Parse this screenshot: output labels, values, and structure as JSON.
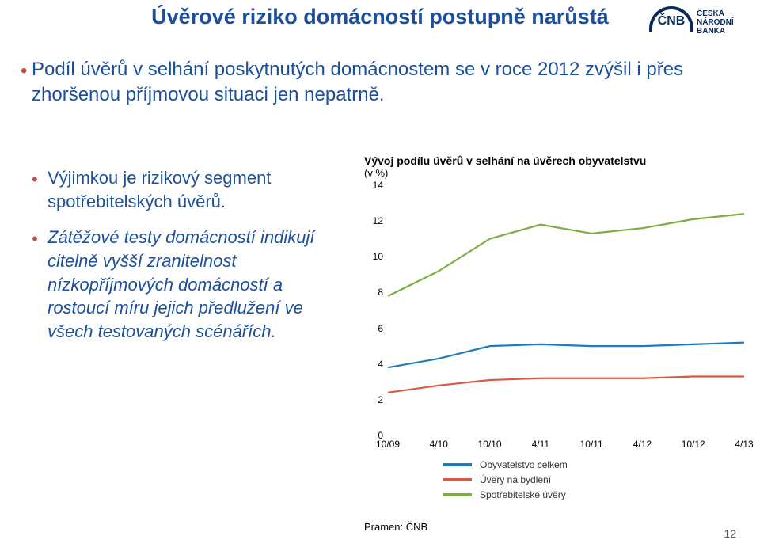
{
  "title": "Úvěrové riziko domácností postupně narůstá",
  "logo": {
    "abbr": "ČNB",
    "line1": "ČESKÁ",
    "line2": "NÁRODNÍ BANKA"
  },
  "bullet_color": "#c0504d",
  "text_color": "#1b4f9c",
  "main_bullet": "Podíl úvěrů v selhání poskytnutých domácnostem se v roce 2012 zvýšil i přes zhoršenou příjmovou situaci jen nepatrně.",
  "side_bullets": [
    {
      "text": "Výjimkou je rizikový segment spotřebitelských úvěrů.",
      "italic": false
    },
    {
      "text": "Zátěžové testy domácností indikují citelně vyšší zranitelnost nízkopříjmových domácností a rostoucí míru jejich předlužení ve všech testovaných scénářích.",
      "italic": true
    }
  ],
  "chart": {
    "title": "Vývoj podílu úvěrů v selhání na úvěrech obyvatelstvu",
    "unit": "(v %)",
    "type": "line",
    "background_color": "#ffffff",
    "title_fontsize": 14,
    "label_fontsize": 12,
    "line_width": 2.2,
    "ylim": [
      0,
      14
    ],
    "ytick_step": 2,
    "yticks": [
      0,
      2,
      4,
      6,
      8,
      10,
      12,
      14
    ],
    "x_categories": [
      "10/09",
      "4/10",
      "10/10",
      "4/11",
      "10/11",
      "4/12",
      "10/12",
      "4/13"
    ],
    "series": [
      {
        "name": "Obyvatelstvo celkem",
        "color": "#1f7bbf",
        "values": [
          3.8,
          4.3,
          5.0,
          5.1,
          5.0,
          5.0,
          5.1,
          5.2
        ]
      },
      {
        "name": "Úvěry na bydlení",
        "color": "#d95b3f",
        "values": [
          2.4,
          2.8,
          3.1,
          3.2,
          3.2,
          3.2,
          3.3,
          3.3
        ]
      },
      {
        "name": "Spotřebitelské úvěry",
        "color": "#7cad3e",
        "values": [
          7.8,
          9.2,
          11.0,
          11.8,
          11.3,
          11.6,
          12.1,
          12.4
        ]
      }
    ],
    "legend": [
      "Obyvatelstvo celkem",
      "Úvěry na bydlení",
      "Spotřebitelské úvěry"
    ],
    "legend_colors": [
      "#1f7bbf",
      "#d95b3f",
      "#7cad3e"
    ]
  },
  "source": "Pramen: ČNB",
  "page_number": "12"
}
